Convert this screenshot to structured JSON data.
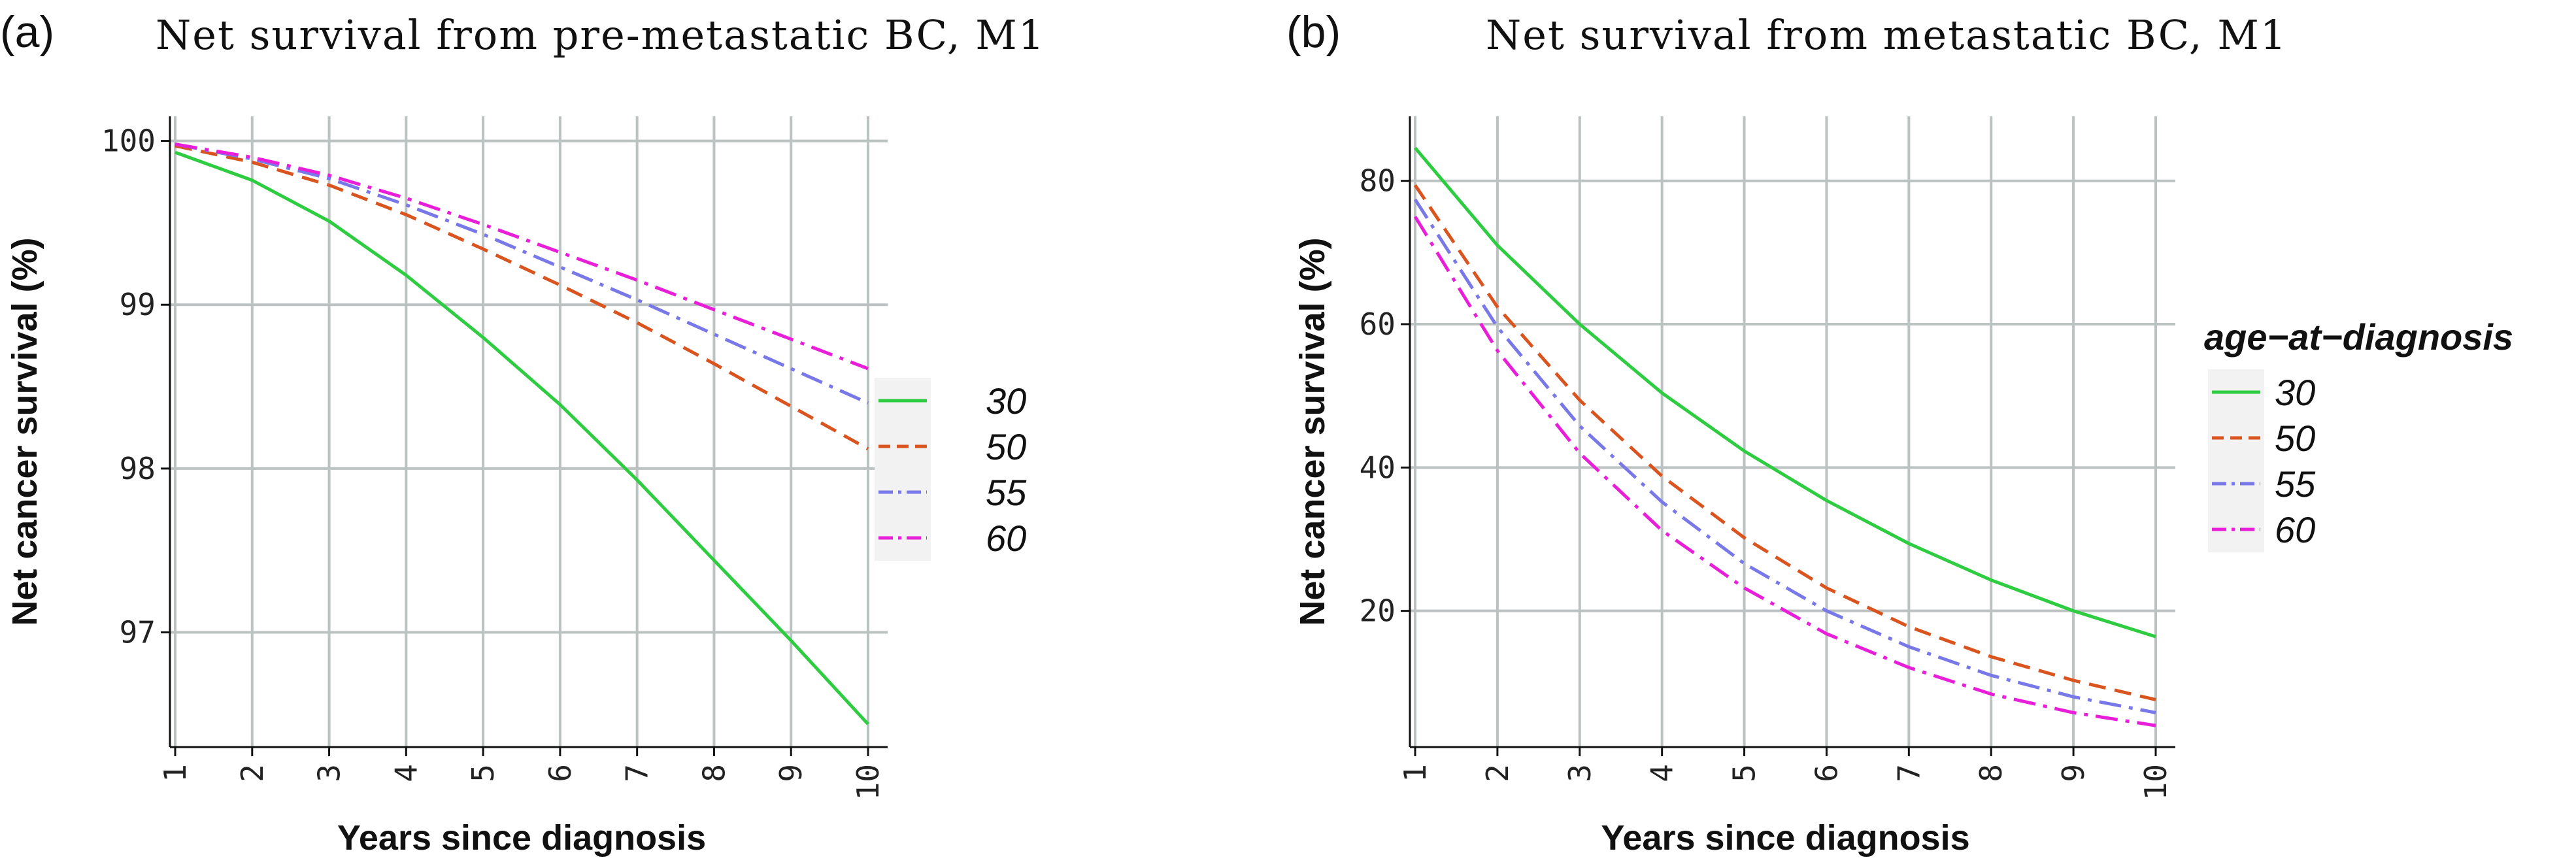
{
  "chart_data": [
    {
      "type": "line",
      "panel_label": "(a)",
      "title": "Net survival from pre-metastatic BC, M1",
      "xlabel": "Years since diagnosis",
      "ylabel": "Net cancer survival (%)",
      "x": [
        1,
        2,
        3,
        4,
        5,
        6,
        7,
        8,
        9,
        10
      ],
      "xlim": [
        1,
        10
      ],
      "ylim": [
        96.3,
        100.15
      ],
      "xticks": [
        "1",
        "2",
        "3",
        "4",
        "5",
        "6",
        "7",
        "8",
        "9",
        "10"
      ],
      "yticks": [
        97,
        98,
        99,
        100
      ],
      "ytick_labels": [
        "97",
        "98",
        "99",
        "100"
      ],
      "grid": true,
      "legend_title": "",
      "series": [
        {
          "name": "30",
          "color": "#2ecc40",
          "dash": "solid",
          "values": [
            99.93,
            99.76,
            99.51,
            99.18,
            98.8,
            98.39,
            97.93,
            97.44,
            96.95,
            96.44
          ]
        },
        {
          "name": "50",
          "color": "#d9541e",
          "dash": "dashed",
          "values": [
            99.97,
            99.87,
            99.73,
            99.55,
            99.34,
            99.12,
            98.89,
            98.64,
            98.38,
            98.12
          ]
        },
        {
          "name": "55",
          "color": "#7878e8",
          "dash": "dashdot",
          "values": [
            99.98,
            99.89,
            99.77,
            99.61,
            99.43,
            99.23,
            99.03,
            98.82,
            98.61,
            98.4
          ]
        },
        {
          "name": "60",
          "color": "#e81ed8",
          "dash": "dashdot",
          "values": [
            99.98,
            99.9,
            99.79,
            99.65,
            99.49,
            99.32,
            99.15,
            98.97,
            98.79,
            98.61
          ]
        }
      ]
    },
    {
      "type": "line",
      "panel_label": "(b)",
      "title": "Net survival from metastatic BC, M1",
      "xlabel": "Years since diagnosis",
      "ylabel": "Net cancer survival (%)",
      "x": [
        1,
        2,
        3,
        4,
        5,
        6,
        7,
        8,
        9,
        10
      ],
      "xlim": [
        1,
        10
      ],
      "ylim": [
        1,
        89
      ],
      "xticks": [
        "1",
        "2",
        "3",
        "4",
        "5",
        "6",
        "7",
        "8",
        "9",
        "10"
      ],
      "yticks": [
        20,
        40,
        60,
        80
      ],
      "ytick_labels": [
        "20",
        "40",
        "60",
        "80"
      ],
      "grid": true,
      "legend_title": "age−at−diagnosis",
      "series": [
        {
          "name": "30",
          "color": "#2ecc40",
          "dash": "solid",
          "values": [
            84.6,
            71,
            60,
            50.4,
            42.3,
            35.4,
            29.4,
            24.3,
            20,
            16.4
          ]
        },
        {
          "name": "50",
          "color": "#d9541e",
          "dash": "dashed",
          "values": [
            79.4,
            62.4,
            49.4,
            38.8,
            30.2,
            23.2,
            17.8,
            13.6,
            10.3,
            7.6
          ]
        },
        {
          "name": "55",
          "color": "#7878e8",
          "dash": "dashdot",
          "values": [
            77.4,
            59.6,
            45.8,
            35.2,
            26.6,
            20,
            15,
            11,
            8,
            5.8
          ]
        },
        {
          "name": "60",
          "color": "#e81ed8",
          "dash": "dashdot",
          "values": [
            75,
            56.3,
            42,
            31.2,
            23.2,
            16.8,
            12.1,
            8.4,
            5.8,
            4
          ]
        }
      ]
    }
  ]
}
